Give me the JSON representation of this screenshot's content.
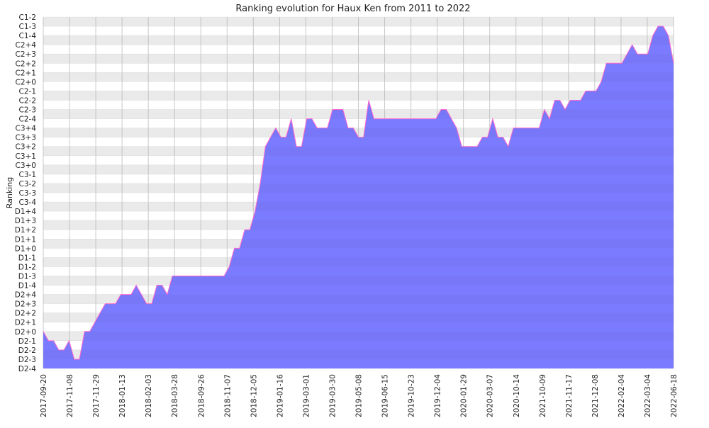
{
  "chart_data": {
    "type": "area",
    "title": "Ranking evolution for Haux Ken from 2011 to 2022",
    "ylabel": "Ranking",
    "xlabel": "",
    "grid": true,
    "legend": "none",
    "y_tick_labels": [
      "D2-4",
      "D2-3",
      "D2-2",
      "D2-1",
      "D2+0",
      "D2+1",
      "D2+2",
      "D2+3",
      "D2+4",
      "D1-4",
      "D1-3",
      "D1-2",
      "D1-1",
      "D1+0",
      "D1+1",
      "D1+2",
      "D1+3",
      "D1+4",
      "C3-4",
      "C3-3",
      "C3-2",
      "C3-1",
      "C3+0",
      "C3+1",
      "C3+2",
      "C3+3",
      "C3+4",
      "C2-4",
      "C2-3",
      "C2-2",
      "C2-1",
      "C2+0",
      "C2+1",
      "C2+2",
      "C2+3",
      "C2+4",
      "C1-4",
      "C1-3",
      "C1-2"
    ],
    "x_tick_labels": [
      "2017-09-20",
      "2017-11-08",
      "2017-11-29",
      "2018-01-13",
      "2018-02-03",
      "2018-03-28",
      "2018-09-26",
      "2018-11-07",
      "2018-12-05",
      "2019-01-16",
      "2019-03-01",
      "2019-03-30",
      "2019-05-08",
      "2019-06-15",
      "2019-10-23",
      "2019-12-04",
      "2020-01-29",
      "2020-03-07",
      "2020-10-14",
      "2021-10-09",
      "2021-11-17",
      "2021-12-08",
      "2022-02-04",
      "2022-03-04",
      "2022-06-18"
    ],
    "series_values": [
      4,
      3,
      3,
      2,
      2,
      3,
      1,
      1,
      4,
      4,
      5,
      6,
      7,
      7,
      7,
      8,
      8,
      8,
      9,
      8,
      7,
      7,
      9,
      9,
      8,
      10,
      10,
      10,
      10,
      10,
      10,
      10,
      10,
      10,
      10,
      10,
      11,
      13,
      13,
      15,
      15,
      17,
      20,
      24,
      25,
      26,
      25,
      25,
      27,
      24,
      24,
      27,
      27,
      26,
      26,
      26,
      28,
      28,
      28,
      26,
      26,
      25,
      25,
      29,
      27,
      27,
      27,
      27,
      27,
      27,
      27,
      27,
      27,
      27,
      27,
      27,
      27,
      28,
      28,
      27,
      26,
      24,
      24,
      24,
      24,
      25,
      25,
      27,
      25,
      25,
      24,
      26,
      26,
      26,
      26,
      26,
      26,
      28,
      27,
      29,
      29,
      28,
      29,
      29,
      29,
      30,
      30,
      30,
      31,
      33,
      33,
      33,
      33,
      34,
      35,
      34,
      34,
      34,
      36,
      37,
      37,
      36,
      33
    ],
    "colors": {
      "fill": "#7b7bff",
      "line": "#ff66cc",
      "band": "#f2f2f2",
      "grid": "#c8c8c8"
    }
  }
}
